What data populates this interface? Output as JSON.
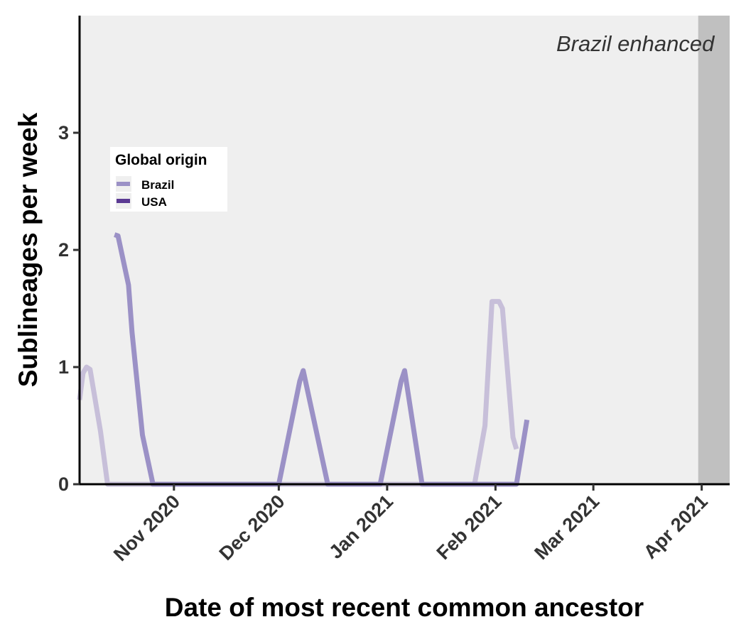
{
  "chart_data": {
    "type": "line",
    "xlabel": "Date of most recent common ancestor",
    "ylabel": "Sublineages per week",
    "xlim": [
      "2020-10-05",
      "2021-04-09"
    ],
    "ylim": [
      0,
      4
    ],
    "x_ticks": [
      {
        "date": "2020-11-01",
        "label": "Nov 2020"
      },
      {
        "date": "2020-12-01",
        "label": "Dec 2020"
      },
      {
        "date": "2021-01-01",
        "label": "Jan 2021"
      },
      {
        "date": "2021-02-01",
        "label": "Feb 2021"
      },
      {
        "date": "2021-03-01",
        "label": "Mar 2021"
      },
      {
        "date": "2021-04-01",
        "label": "Apr 2021"
      }
    ],
    "y_ticks": [
      {
        "value": 0,
        "label": "0"
      },
      {
        "value": 1,
        "label": "1"
      },
      {
        "value": 2,
        "label": "2"
      },
      {
        "value": 3,
        "label": "3"
      }
    ],
    "legend": {
      "title": "Global origin",
      "placement": "top-left"
    },
    "shaded_region": {
      "start": "2021-03-31",
      "end": "2021-04-09",
      "color": "#c0c0c0"
    },
    "annotation": "Brazil enhanced",
    "background_color": "#efefef",
    "series": [
      {
        "name": "Brazil",
        "color": "#9b91c6",
        "points": [
          [
            "2020-10-15",
            2.13
          ],
          [
            "2020-10-16",
            2.12
          ],
          [
            "2020-10-19",
            1.7
          ],
          [
            "2020-10-20",
            1.3
          ],
          [
            "2020-10-23",
            0.42
          ],
          [
            "2020-10-26",
            0.0
          ],
          [
            "2020-12-01",
            0.0
          ],
          [
            "2020-12-07",
            0.88
          ],
          [
            "2020-12-08",
            0.97
          ],
          [
            "2020-12-15",
            0.0
          ],
          [
            "2020-12-30",
            0.0
          ],
          [
            "2021-01-05",
            0.88
          ],
          [
            "2021-01-06",
            0.97
          ],
          [
            "2021-01-11",
            0.0
          ],
          [
            "2021-02-07",
            0.0
          ],
          [
            "2021-02-10",
            0.55
          ]
        ]
      },
      {
        "name": "",
        "color": "#c7bfd9",
        "points": [
          [
            "2020-10-05",
            0.72
          ],
          [
            "2020-10-06",
            0.95
          ],
          [
            "2020-10-07",
            1.0
          ],
          [
            "2020-10-08",
            0.98
          ],
          [
            "2020-10-11",
            0.45
          ],
          [
            "2020-10-13",
            0.0
          ],
          [
            "2021-01-26",
            0.0
          ],
          [
            "2021-01-29",
            0.5
          ],
          [
            "2021-01-31",
            1.56
          ],
          [
            "2021-02-02",
            1.56
          ],
          [
            "2021-02-03",
            1.5
          ],
          [
            "2021-02-06",
            0.4
          ],
          [
            "2021-02-07",
            0.3
          ]
        ]
      },
      {
        "name": "USA",
        "color": "#5b3a93",
        "points": []
      }
    ]
  }
}
